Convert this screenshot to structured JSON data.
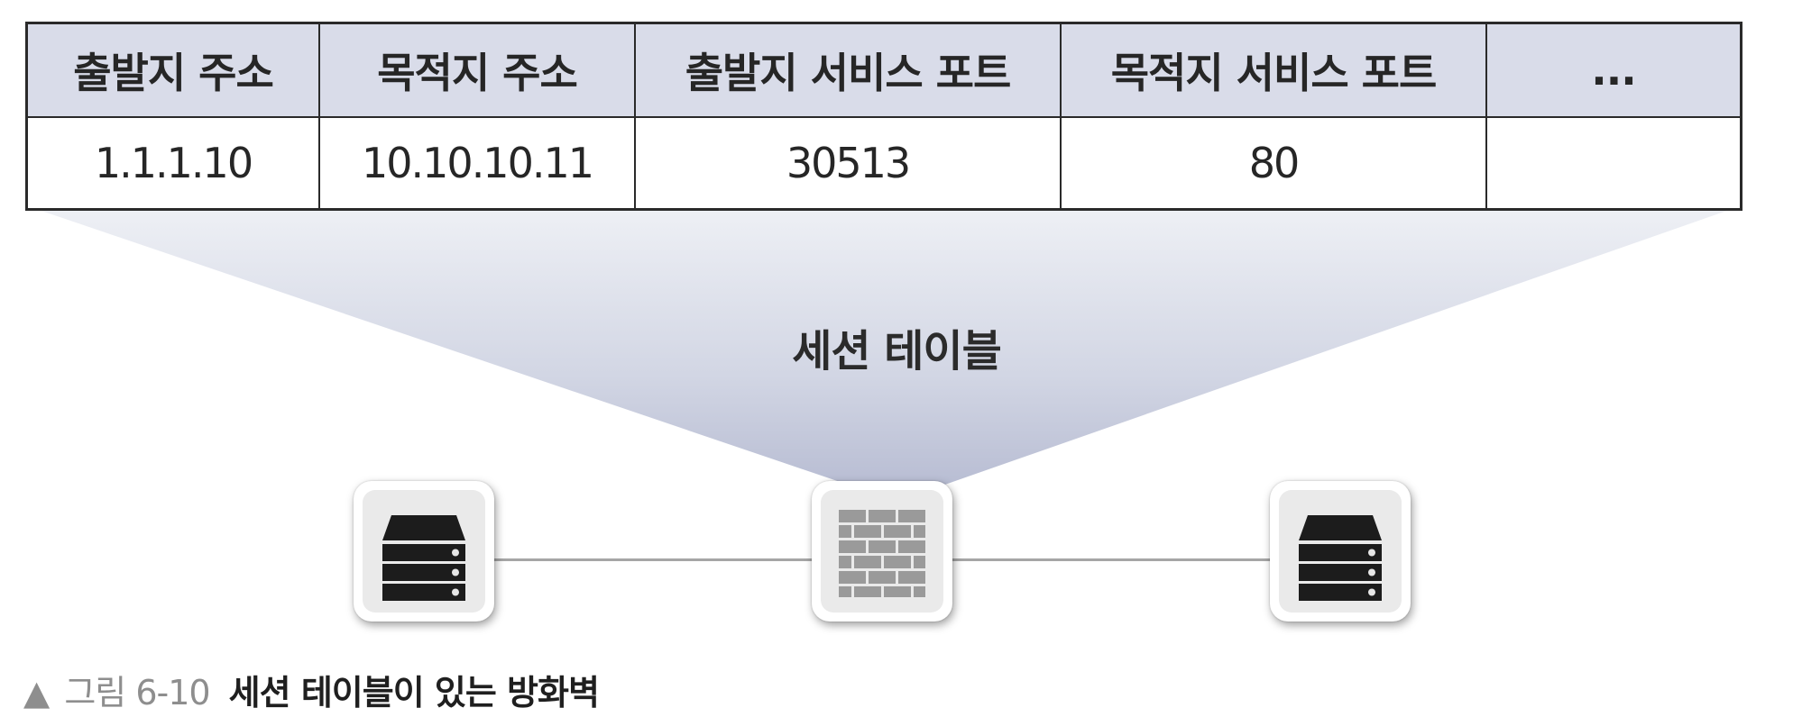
{
  "session_table": {
    "headers": [
      "출발지 주소",
      "목적지 주소",
      "출발지 서비스 포트",
      "목적지 서비스 포트",
      "..."
    ],
    "row": [
      "1.1.1.10",
      "10.10.10.11",
      "30513",
      "80",
      ""
    ]
  },
  "table_title": "세션 테이블",
  "nodes": [
    {
      "icon": "server-icon"
    },
    {
      "icon": "firewall-icon"
    },
    {
      "icon": "server-icon"
    }
  ],
  "caption": {
    "marker": "▲",
    "label": "그림 6-10",
    "title": "세션 테이블이 있는 방화벽"
  },
  "colors": {
    "header_bg": "#d9dce9",
    "fan_top": "#eef0f5",
    "fan_bottom": "#b8bdd3",
    "link_line": "#a6a6a6",
    "server_body": "#1c1c1c",
    "firewall_brick": "#9a9a9a"
  }
}
